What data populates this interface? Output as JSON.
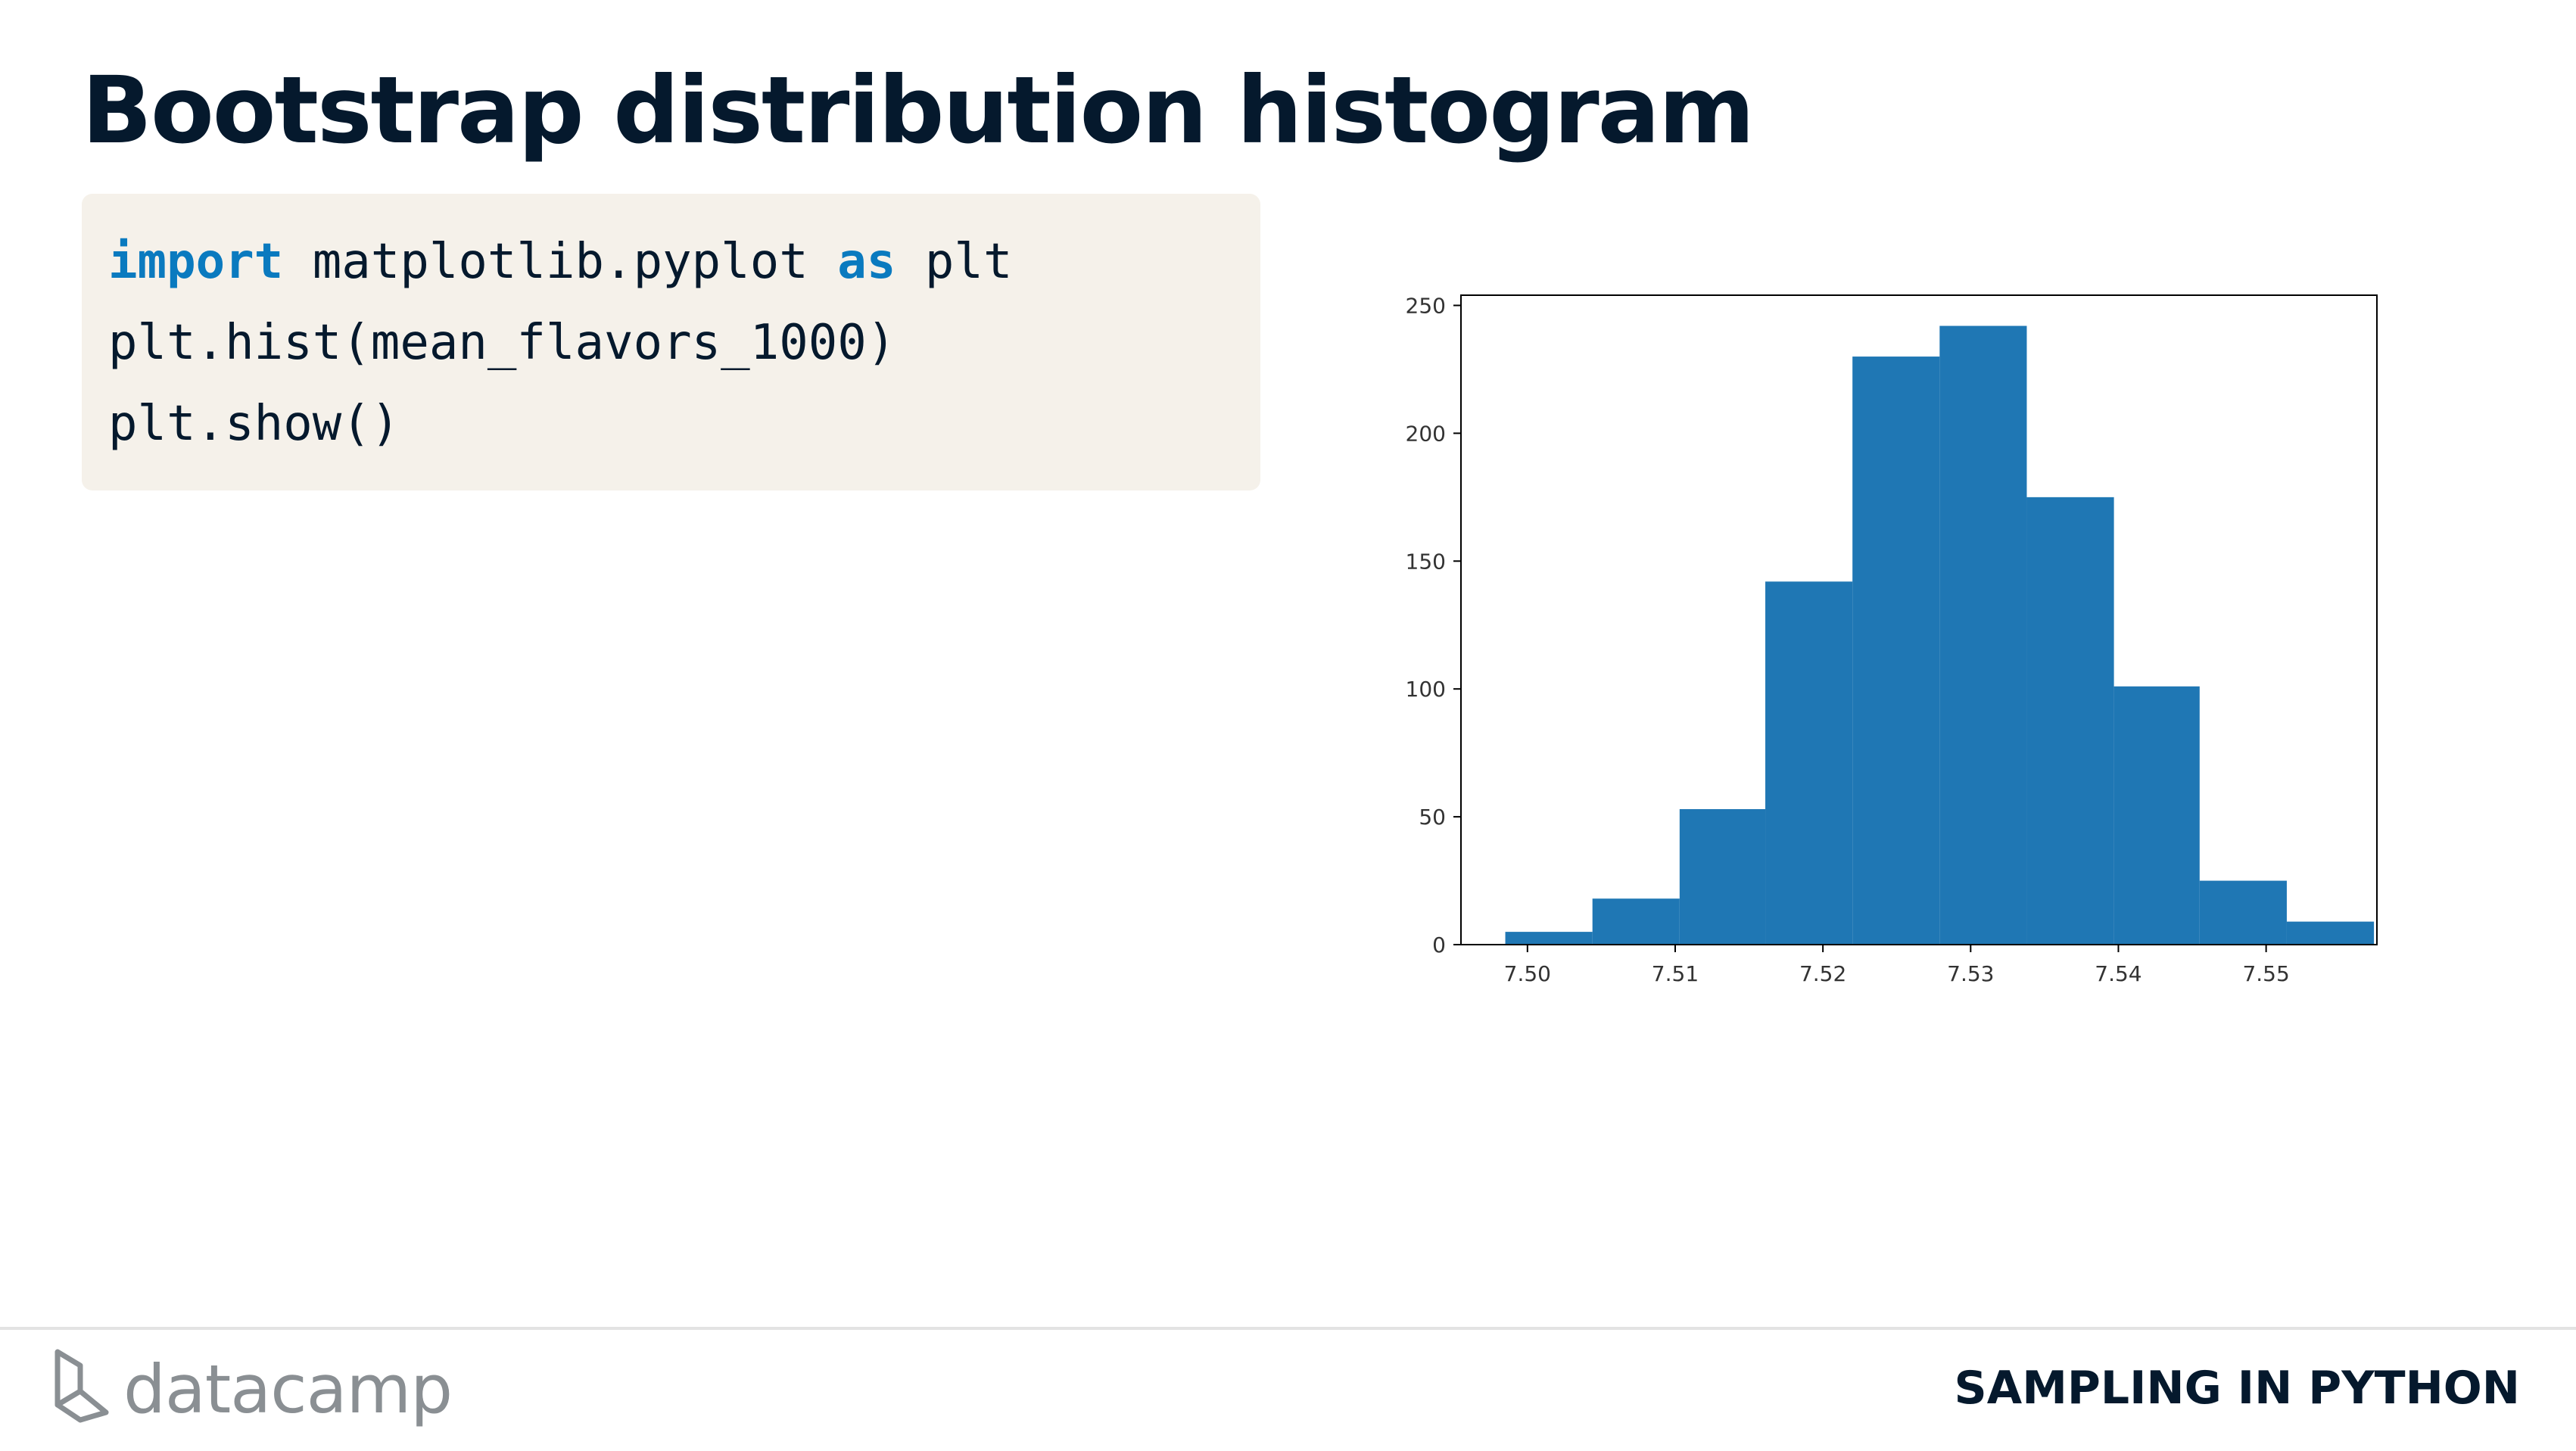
{
  "slide": {
    "title": "Bootstrap distribution histogram"
  },
  "code": {
    "lines": [
      [
        {
          "text": "import",
          "kw": true
        },
        {
          "text": " matplotlib.pyplot ",
          "kw": false
        },
        {
          "text": "as",
          "kw": true
        },
        {
          "text": " plt",
          "kw": false
        }
      ],
      [
        {
          "text": "plt.hist(mean_flavors_1000)",
          "kw": false
        }
      ],
      [
        {
          "text": "plt.show()",
          "kw": false
        }
      ]
    ],
    "keyword_color": "#0a7abf",
    "background_color": "#f5f1ea"
  },
  "chart_data": {
    "type": "bar",
    "title": "",
    "xlabel": "",
    "ylabel": "",
    "xlim": [
      7.4955,
      7.5575
    ],
    "ylim": [
      0,
      254
    ],
    "xticks": [
      7.5,
      7.51,
      7.52,
      7.53,
      7.54,
      7.55
    ],
    "xtick_labels": [
      "7.50",
      "7.51",
      "7.52",
      "7.53",
      "7.54",
      "7.55"
    ],
    "yticks": [
      0,
      50,
      100,
      150,
      200,
      250
    ],
    "ytick_labels": [
      "0",
      "50",
      "100",
      "150",
      "200",
      "250"
    ],
    "bin_edges": [
      7.4985,
      7.5044,
      7.5103,
      7.5161,
      7.522,
      7.5279,
      7.5338,
      7.5397,
      7.5455,
      7.5514,
      7.5573
    ],
    "values": [
      5,
      18,
      53,
      142,
      230,
      242,
      175,
      101,
      25,
      9
    ],
    "bar_color": "#1f77b4",
    "grid": false,
    "legend": "none"
  },
  "footer": {
    "brand": "datacamp",
    "course": "SAMPLING IN PYTHON"
  }
}
